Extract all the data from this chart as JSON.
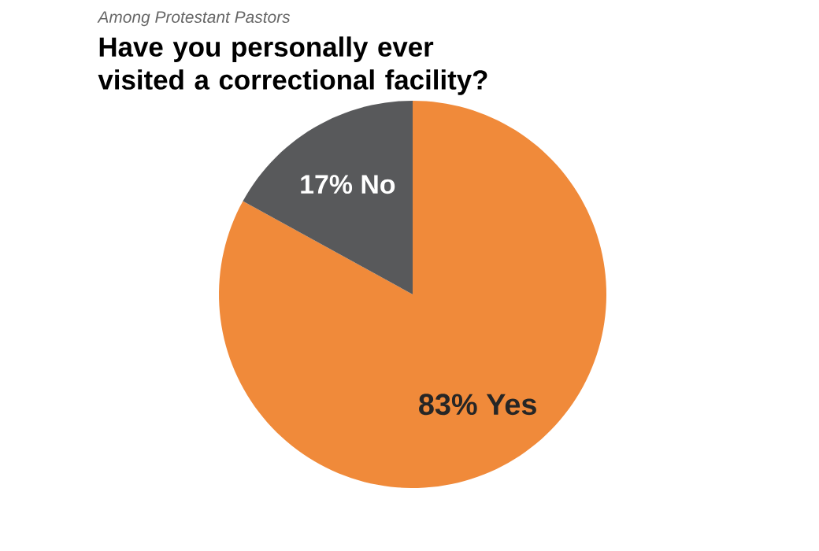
{
  "chart_data": {
    "type": "pie",
    "subtitle": "Among Protestant Pastors",
    "title": "Have you personally ever visited a correctional facility?",
    "categories": [
      "Yes",
      "No"
    ],
    "values": [
      83,
      17
    ],
    "value_labels": [
      "83%",
      "17%"
    ],
    "colors": [
      "#f08a3a",
      "#58595b"
    ]
  }
}
